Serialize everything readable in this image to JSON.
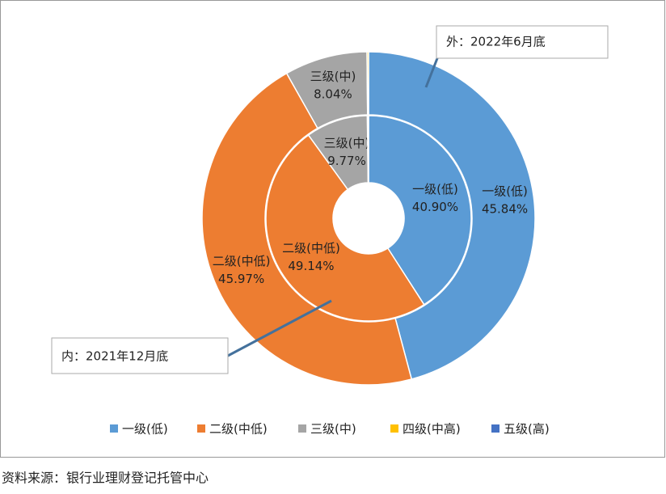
{
  "chart_data": {
    "type": "donut",
    "categories": [
      "一级(低)",
      "二级(中低)",
      "三级(中)",
      "四级(中高)",
      "五级(高)"
    ],
    "colors": [
      "#5b9bd5",
      "#ed7d31",
      "#a5a5a5",
      "#ffc000",
      "#4472c4"
    ],
    "series": [
      {
        "name": "外：2022年6月底",
        "ring": "outer",
        "values": [
          45.84,
          45.97,
          8.04,
          0.15,
          0
        ],
        "value_labels": [
          "45.84%",
          "45.97%",
          "8.04%",
          null,
          null
        ]
      },
      {
        "name": "内：2021年12月底",
        "ring": "inner",
        "values": [
          40.9,
          49.14,
          9.77,
          0.19,
          0
        ],
        "value_labels": [
          "40.90%",
          "49.14%",
          "9.77%",
          null,
          null
        ]
      }
    ],
    "legend": "bottom",
    "source": "资料来源：银行业理财登记托管中心"
  }
}
